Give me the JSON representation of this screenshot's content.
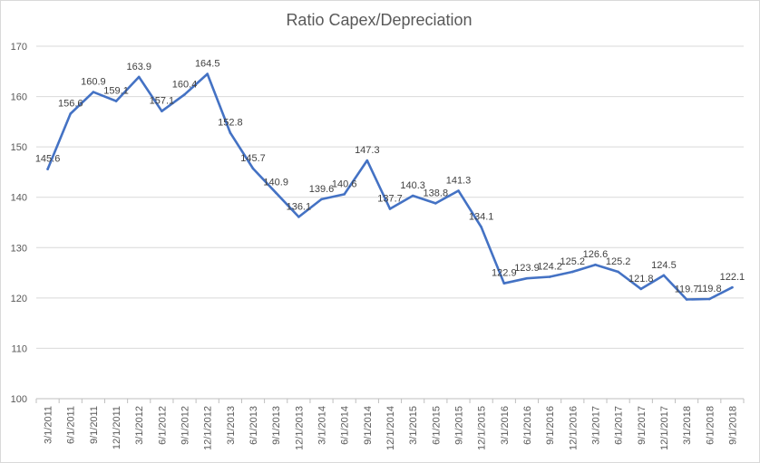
{
  "chart_data": {
    "type": "line",
    "title": "Ratio Capex/Depreciation",
    "xlabel": "",
    "ylabel": "",
    "ylim": [
      100,
      170
    ],
    "yticks": [
      100,
      110,
      120,
      130,
      140,
      150,
      160,
      170
    ],
    "grid": true,
    "legend": "none",
    "line_color": "#4472C4",
    "categories": [
      "3/1/2011",
      "6/1/2011",
      "9/1/2011",
      "12/1/2011",
      "3/1/2012",
      "6/1/2012",
      "9/1/2012",
      "12/1/2012",
      "3/1/2013",
      "6/1/2013",
      "9/1/2013",
      "12/1/2013",
      "3/1/2014",
      "6/1/2014",
      "9/1/2014",
      "12/1/2014",
      "3/1/2015",
      "6/1/2015",
      "9/1/2015",
      "12/1/2015",
      "3/1/2016",
      "6/1/2016",
      "9/1/2016",
      "12/1/2016",
      "3/1/2017",
      "6/1/2017",
      "9/1/2017",
      "12/1/2017",
      "3/1/2018",
      "6/1/2018",
      "9/1/2018"
    ],
    "values": [
      145.6,
      156.6,
      160.9,
      159.1,
      163.9,
      157.1,
      160.4,
      164.5,
      152.8,
      145.7,
      140.9,
      136.1,
      139.6,
      140.6,
      147.3,
      137.7,
      140.3,
      138.8,
      141.3,
      134.1,
      122.9,
      123.9,
      124.2,
      125.2,
      126.6,
      125.2,
      121.8,
      124.5,
      119.7,
      119.8,
      122.1
    ],
    "data_labels": [
      "145.6",
      "156.6",
      "160.9",
      "159.1",
      "163.9",
      "157.1",
      "160.4",
      "164.5",
      "152.8",
      "145.7",
      "140.9",
      "136.1",
      "139.6",
      "140.6",
      "147.3",
      "137.7",
      "140.3",
      "138.8",
      "141.3",
      "134.1",
      "122.9",
      "123.9",
      "124.2",
      "125.2",
      "126.6",
      "125.2",
      "121.8",
      "124.5",
      "119.7",
      "119.8",
      "122.1"
    ]
  }
}
